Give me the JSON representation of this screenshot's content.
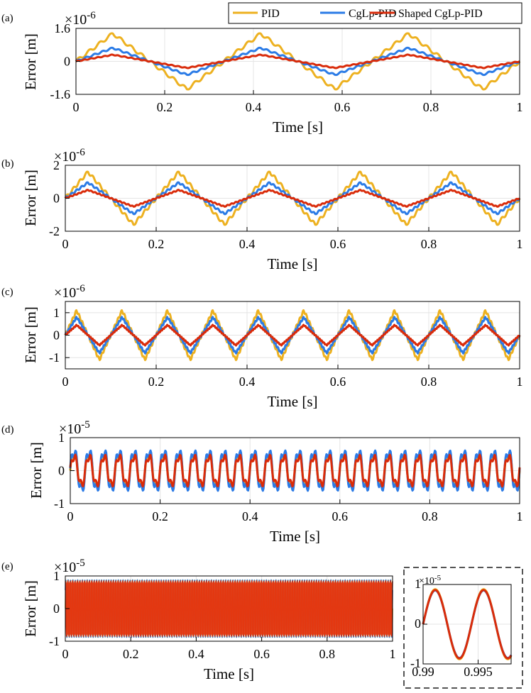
{
  "legend": {
    "entries": [
      {
        "label": "PID",
        "color": "#EDB120"
      },
      {
        "label": "CgLp-PID",
        "color": "#2B7BE6"
      },
      {
        "label": "Shaped CgLp-PID",
        "color": "#D92B0A"
      }
    ]
  },
  "chart_data": [
    {
      "panel": "(a)",
      "type": "line",
      "xlabel": "Time [s]",
      "ylabel": "Error [m]",
      "exponent_base": "×10",
      "exponent_power": "-6",
      "xlim": [
        0,
        1
      ],
      "ylim": [
        -1.6,
        1.6
      ],
      "xticks": [
        "0",
        "0.2",
        "0.4",
        "0.6",
        "0.8",
        "1"
      ],
      "yticks": [
        "-1.6",
        "0",
        "1.6"
      ],
      "ytick_values": [
        -1.6,
        0,
        1.6
      ],
      "grid": true,
      "legend": "top-right",
      "frequency_hz": 3,
      "series": [
        {
          "name": "PID",
          "amplitude": 1.35
        },
        {
          "name": "CgLp-PID",
          "amplitude": 0.65
        },
        {
          "name": "Shaped CgLp-PID",
          "amplitude": 0.32
        }
      ]
    },
    {
      "panel": "(b)",
      "type": "line",
      "xlabel": "Time [s]",
      "ylabel": "Error [m]",
      "exponent_base": "×10",
      "exponent_power": "-6",
      "xlim": [
        0,
        1
      ],
      "ylim": [
        -2,
        2
      ],
      "xticks": [
        "0",
        "0.2",
        "0.4",
        "0.6",
        "0.8",
        "1"
      ],
      "yticks": [
        "-2",
        "0",
        "2"
      ],
      "ytick_values": [
        -2,
        0,
        2
      ],
      "grid": true,
      "frequency_hz": 5,
      "series": [
        {
          "name": "PID",
          "amplitude": 1.6
        },
        {
          "name": "CgLp-PID",
          "amplitude": 0.95
        },
        {
          "name": "Shaped CgLp-PID",
          "amplitude": 0.5
        }
      ]
    },
    {
      "panel": "(c)",
      "type": "line",
      "xlabel": "Time [s]",
      "ylabel": "Error [m]",
      "exponent_base": "×10",
      "exponent_power": "-6",
      "xlim": [
        0,
        1
      ],
      "ylim": [
        -1.5,
        1.5
      ],
      "xticks": [
        "0",
        "0.2",
        "0.4",
        "0.6",
        "0.8",
        "1"
      ],
      "yticks": [
        "-1",
        "0",
        "1"
      ],
      "ytick_values": [
        -1,
        0,
        1
      ],
      "grid": true,
      "frequency_hz": 10,
      "series": [
        {
          "name": "PID",
          "amplitude": 1.1
        },
        {
          "name": "CgLp-PID",
          "amplitude": 0.8
        },
        {
          "name": "Shaped CgLp-PID",
          "amplitude": 0.45
        }
      ]
    },
    {
      "panel": "(d)",
      "type": "line",
      "xlabel": "Time [s]",
      "ylabel": "Error [m]",
      "exponent_base": "×10",
      "exponent_power": "-5",
      "xlim": [
        0,
        1
      ],
      "ylim": [
        -1,
        1
      ],
      "xticks": [
        "0",
        "0.2",
        "0.4",
        "0.6",
        "0.8",
        "1"
      ],
      "yticks": [
        "-1",
        "0",
        "1"
      ],
      "ytick_values": [
        -1,
        0,
        1
      ],
      "grid": true,
      "frequency_hz": 30,
      "series": [
        {
          "name": "PID",
          "amplitude": 0.62
        },
        {
          "name": "CgLp-PID",
          "amplitude": 0.75
        },
        {
          "name": "Shaped CgLp-PID",
          "amplitude": 0.55
        }
      ]
    },
    {
      "panel": "(e)",
      "type": "line",
      "xlabel": "Time [s]",
      "ylabel": "Error [m]",
      "exponent_base": "×10",
      "exponent_power": "-5",
      "xlim": [
        0,
        1
      ],
      "ylim": [
        -1,
        1
      ],
      "xticks": [
        "0",
        "0.2",
        "0.4",
        "0.6",
        "0.8",
        "1"
      ],
      "yticks": [
        "-1",
        "0",
        "1"
      ],
      "ytick_values": [
        -1,
        0,
        1
      ],
      "grid": true,
      "frequency_hz": 200,
      "series": [
        {
          "name": "PID",
          "amplitude": 0.88
        },
        {
          "name": "CgLp-PID",
          "amplitude": 0.88
        },
        {
          "name": "Shaped CgLp-PID",
          "amplitude": 0.85
        }
      ]
    },
    {
      "panel": "(e) inset",
      "type": "line",
      "exponent_base": "×10",
      "exponent_power": "-5",
      "xlim": [
        0.99,
        0.998
      ],
      "ylim": [
        -1,
        1
      ],
      "xticks": [
        "0.99",
        "0.995"
      ],
      "xtick_values": [
        0.99,
        0.995
      ],
      "yticks": [
        "-1",
        "0",
        "1"
      ],
      "ytick_values": [
        -1,
        0,
        1
      ],
      "grid": true,
      "frequency_hz": 200,
      "series": [
        {
          "name": "PID",
          "amplitude": 0.88
        },
        {
          "name": "CgLp-PID",
          "amplitude": 0.85
        },
        {
          "name": "Shaped CgLp-PID",
          "amplitude": 0.86
        }
      ]
    }
  ]
}
